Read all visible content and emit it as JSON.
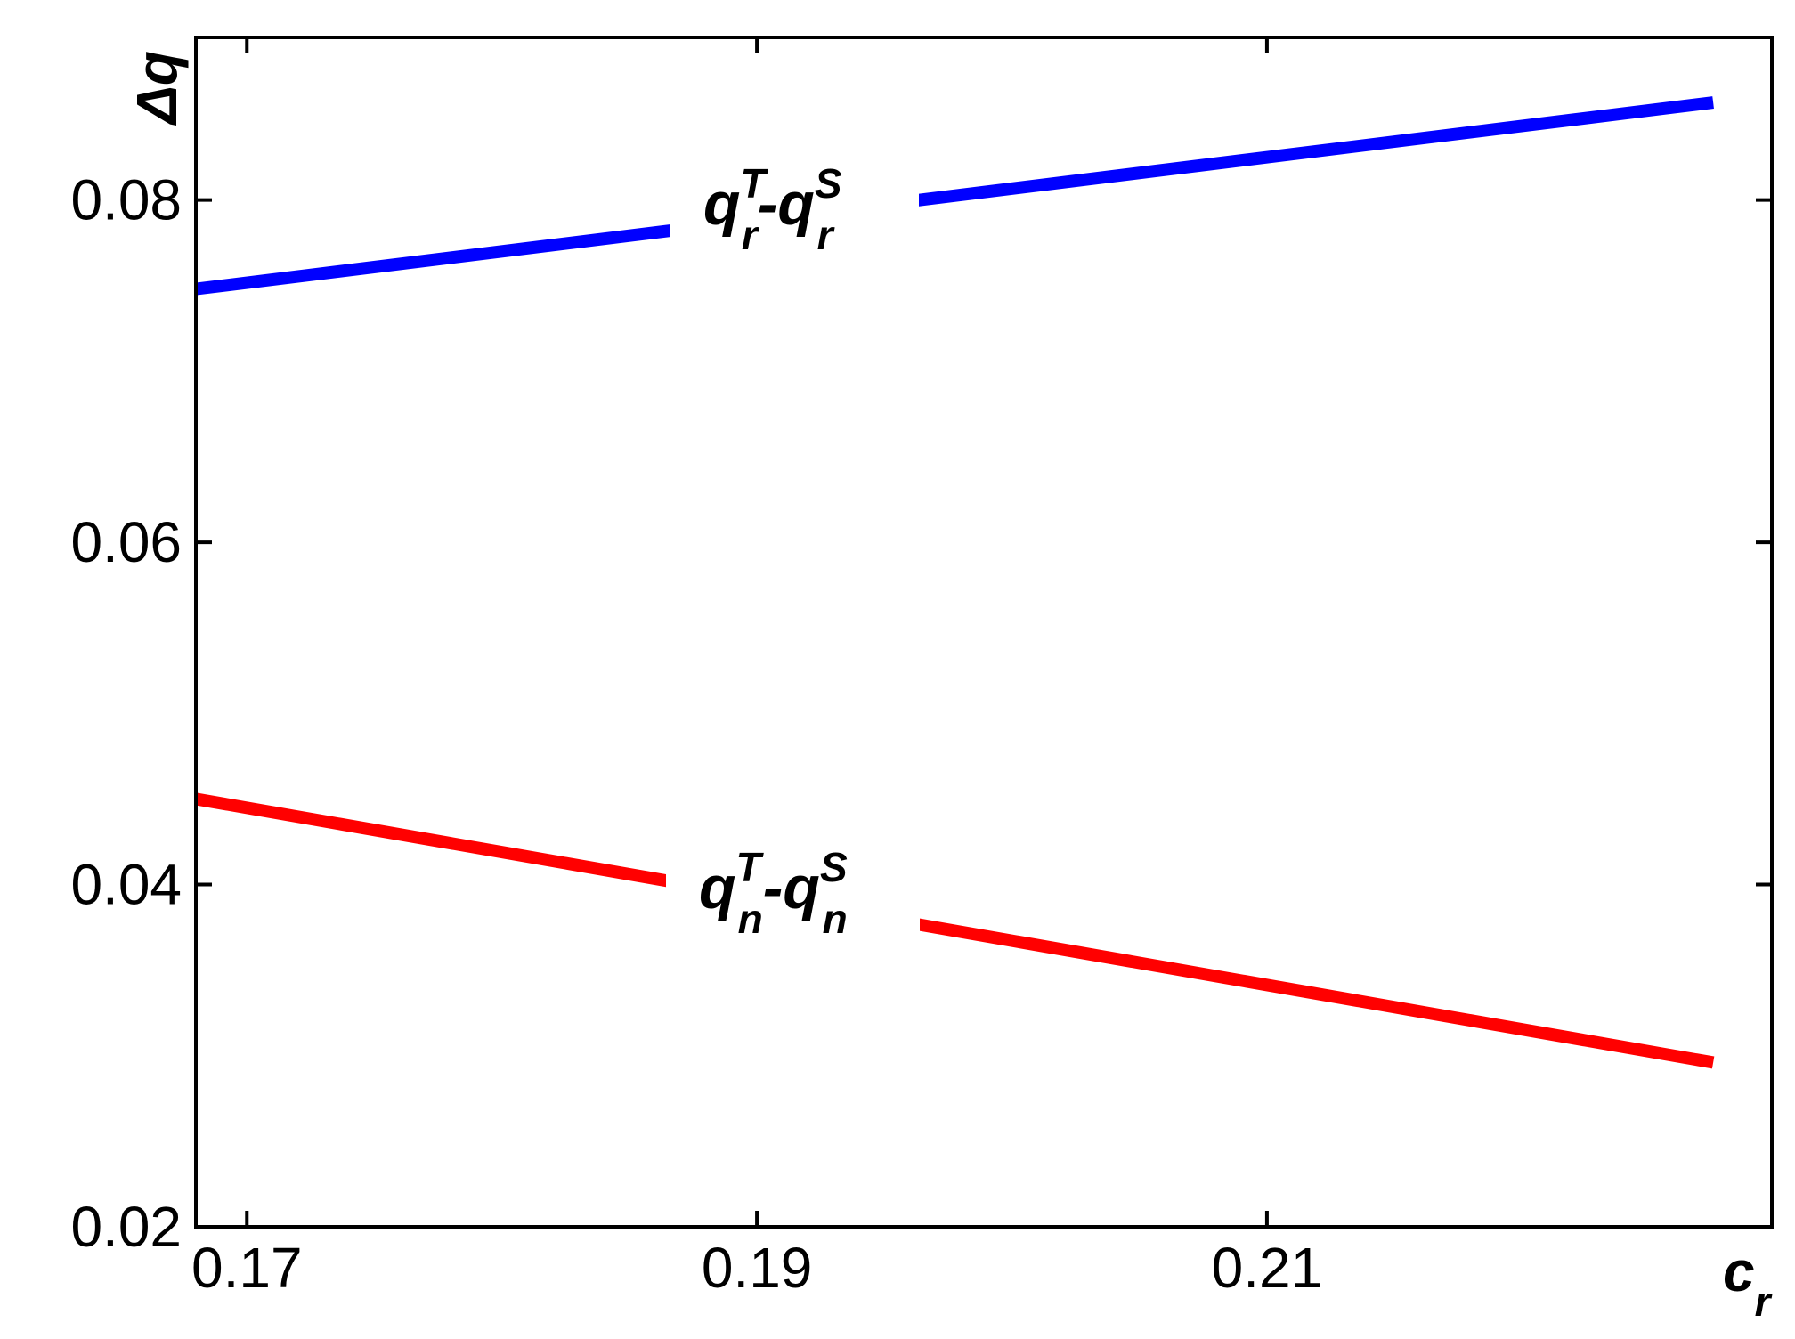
{
  "chart_data": {
    "type": "line",
    "title": "",
    "xlabel": "c",
    "xlabel_sub": "r",
    "ylabel": "Δq",
    "xlim": [
      0.168,
      0.2298
    ],
    "ylim": [
      0.02,
      0.0895
    ],
    "xticks": [
      0.17,
      0.19,
      0.21
    ],
    "xtick_labels": [
      "0.17",
      "0.19",
      "0.21"
    ],
    "yticks": [
      0.02,
      0.04,
      0.06,
      0.08
    ],
    "ytick_labels": [
      "0.02",
      "0.04",
      "0.06",
      "0.08"
    ],
    "grid": false,
    "legend": "none",
    "series": [
      {
        "color": "#0000ff",
        "x": [
          0.168,
          0.2275
        ],
        "y": [
          0.0748,
          0.0857
        ],
        "label": {
          "main": "q",
          "sup1": "T",
          "sub1": "r",
          "mid": "-q",
          "sup2": "S",
          "sub2": "r"
        }
      },
      {
        "color": "#ff0000",
        "x": [
          0.168,
          0.2275
        ],
        "y": [
          0.045,
          0.0296
        ],
        "label": {
          "main": "q",
          "sup1": "T",
          "sub1": "n",
          "mid": "-q",
          "sup2": "S",
          "sub2": "n"
        }
      }
    ]
  }
}
